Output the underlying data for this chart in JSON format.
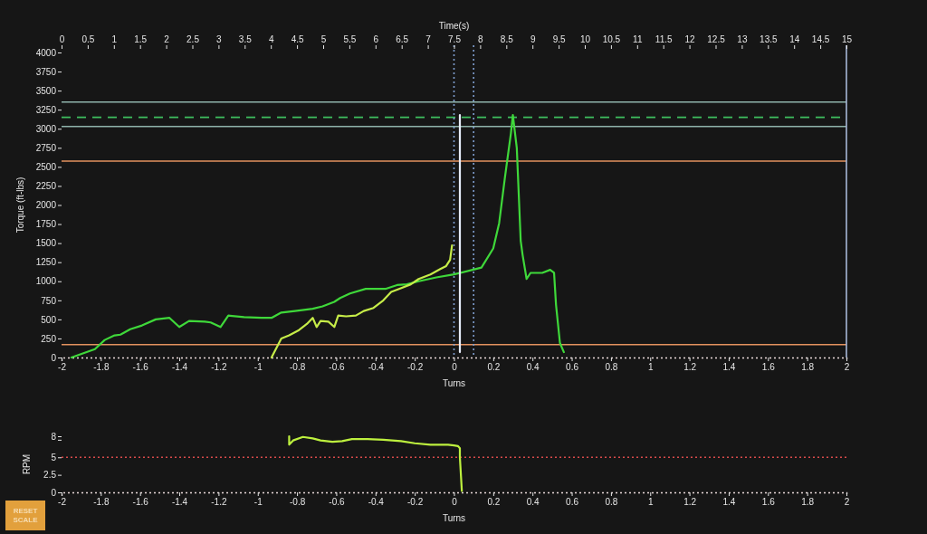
{
  "chart_data": [
    {
      "type": "line",
      "x2label": "Time(s)",
      "xlabel": "Turns",
      "ylabel": "Torque (ft-lbs)",
      "xlim": [
        -2,
        2
      ],
      "xticks": [
        -2,
        -1.8,
        -1.6,
        -1.4,
        -1.2,
        -1,
        -0.8,
        -0.6,
        -0.4,
        -0.2,
        0,
        0.2,
        0.4,
        0.6,
        0.8,
        1,
        1.2,
        1.4,
        1.6,
        1.8,
        2
      ],
      "x2lim": [
        0,
        15
      ],
      "x2ticks": [
        0,
        0.5,
        1,
        1.5,
        2,
        2.5,
        3,
        3.5,
        4,
        4.5,
        5,
        5.5,
        6,
        6.5,
        7,
        7.5,
        8,
        8.5,
        9,
        9.5,
        10,
        10.5,
        11,
        11.5,
        12,
        12.5,
        13,
        13.5,
        14,
        14.5,
        15
      ],
      "ylim": [
        0,
        4000
      ],
      "yticks": [
        0,
        250,
        500,
        750,
        1000,
        1250,
        1500,
        1750,
        2000,
        2250,
        2500,
        2750,
        3000,
        3250,
        3500,
        3750,
        4000
      ],
      "series": [
        {
          "color": "#3fd83a",
          "x": [
            -1.95,
            -1.83,
            -1.78,
            -1.73,
            -1.7,
            -1.65,
            -1.59,
            -1.52,
            -1.45,
            -1.4,
            -1.35,
            -1.27,
            -1.24,
            -1.19,
            -1.15,
            -1.07,
            -0.98,
            -0.93,
            -0.88,
            -0.81,
            -0.72,
            -0.67,
            -0.61,
            -0.58,
            -0.53,
            -0.45,
            -0.35,
            -0.29,
            -0.24,
            -0.18,
            -0.09,
            0,
            0.14,
            0.2,
            0.23,
            0.26,
            0.29,
            0.3,
            0.32,
            0.34,
            0.35,
            0.37,
            0.39,
            0.45,
            0.49,
            0.51,
            0.52,
            0.54,
            0.56
          ],
          "values": [
            0,
            110,
            230,
            290,
            300,
            370,
            420,
            500,
            520,
            400,
            480,
            470,
            460,
            400,
            550,
            530,
            520,
            520,
            590,
            610,
            640,
            670,
            730,
            780,
            840,
            900,
            900,
            950,
            960,
            1000,
            1050,
            1090,
            1180,
            1430,
            1760,
            2370,
            2940,
            3180,
            2750,
            1530,
            1340,
            1030,
            1110,
            1110,
            1150,
            1110,
            690,
            190,
            70
          ]
        },
        {
          "color": "#c6ec48",
          "x": [
            -0.93,
            -0.88,
            -0.84,
            -0.79,
            -0.75,
            -0.72,
            -0.7,
            -0.68,
            -0.64,
            -0.61,
            -0.59,
            -0.55,
            -0.5,
            -0.46,
            -0.41,
            -0.36,
            -0.32,
            -0.28,
            -0.22,
            -0.18,
            -0.12,
            -0.07,
            -0.04,
            -0.02,
            -0.01
          ],
          "values": [
            0,
            250,
            290,
            360,
            440,
            520,
            400,
            480,
            470,
            400,
            550,
            540,
            550,
            610,
            650,
            750,
            860,
            900,
            960,
            1030,
            1090,
            1160,
            1200,
            1280,
            1470
          ]
        },
        {
          "color": "#e6ecfa",
          "x": [
            0.03,
            0.03
          ],
          "values": [
            70,
            3180
          ]
        }
      ],
      "ref_lines": [
        {
          "axis": "y",
          "value": 3350,
          "color": "#8fb3ab",
          "line_style": "solid"
        },
        {
          "axis": "y",
          "value": 3150,
          "color": "#3fbf5f",
          "line_style": "dashed"
        },
        {
          "axis": "y",
          "value": 3030,
          "color": "#8fb3ab",
          "line_style": "solid"
        },
        {
          "axis": "y",
          "value": 2575,
          "color": "#e3925e",
          "line_style": "solid"
        },
        {
          "axis": "y",
          "value": 170,
          "color": "#e3925e",
          "line_style": "solid"
        },
        {
          "axis": "x",
          "value": 0,
          "color": "#7f9fd0",
          "line_style": "dotted"
        },
        {
          "axis": "x",
          "value": 0.1,
          "color": "#7f9fd0",
          "line_style": "dotted"
        },
        {
          "axis": "x",
          "value": 2,
          "color": "#a8b8d8",
          "line_style": "solid"
        }
      ]
    },
    {
      "type": "line",
      "xlabel": "Turns",
      "ylabel": "RPM",
      "xlim": [
        -2,
        2
      ],
      "xticks": [
        -2,
        -1.8,
        -1.6,
        -1.4,
        -1.2,
        -1,
        -0.8,
        -0.6,
        -0.4,
        -0.2,
        0,
        0.2,
        0.4,
        0.6,
        0.8,
        1,
        1.2,
        1.4,
        1.6,
        1.8,
        2
      ],
      "ylim": [
        0,
        8
      ],
      "yticks": [
        0,
        2.5,
        5,
        {
          "value": 7.5,
          "label": null
        },
        8
      ],
      "series": [
        {
          "color": "#bdf03e",
          "x": [
            -0.84,
            -0.84,
            -0.82,
            -0.77,
            -0.72,
            -0.68,
            -0.62,
            -0.57,
            -0.52,
            -0.44,
            -0.36,
            -0.27,
            -0.2,
            -0.12,
            -0.03,
            0,
            0.02,
            0.03,
            0.03,
            0.04
          ],
          "values": [
            8,
            6.8,
            7.4,
            7.9,
            7.7,
            7.4,
            7.2,
            7.3,
            7.6,
            7.6,
            7.5,
            7.3,
            7.0,
            6.8,
            6.8,
            6.7,
            6.6,
            6.3,
            5,
            0.2
          ]
        }
      ],
      "ref_lines": [
        {
          "axis": "y",
          "value": 5,
          "color": "#d84a4a",
          "line_style": "dotted"
        }
      ],
      "annotations": [
        "RESET SCALE"
      ]
    }
  ]
}
